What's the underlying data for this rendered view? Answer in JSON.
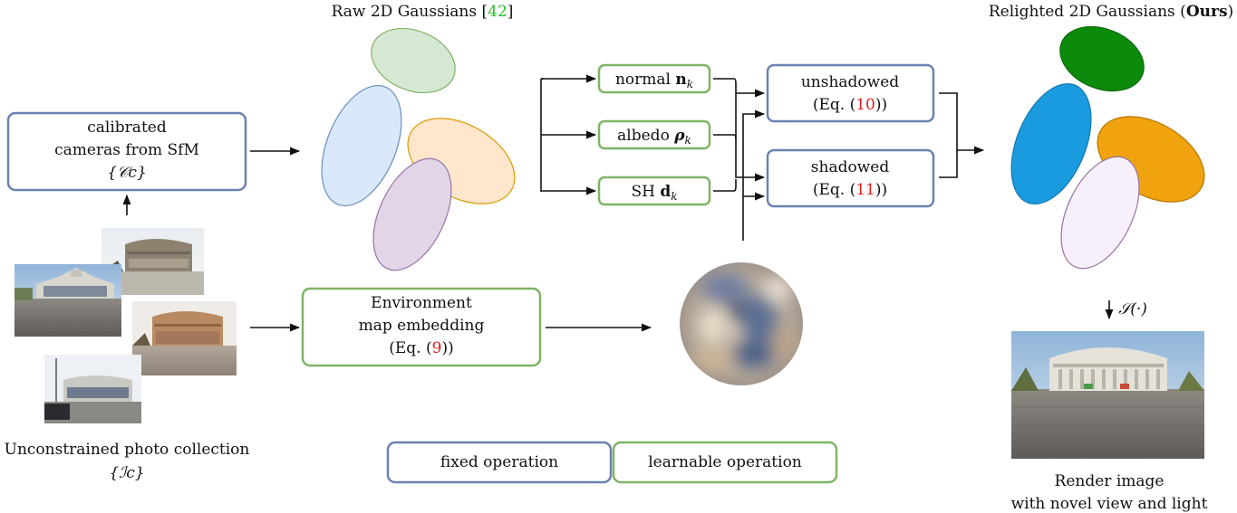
{
  "titles": {
    "raw": "Raw 2D Gaussians",
    "raw_ref": "42",
    "relit_prefix": "Relighted 2D Gaussians (",
    "relit_bold": "Ours",
    "relit_suffix": ")"
  },
  "boxes": {
    "cameras": {
      "line1": "calibrated",
      "line2": "cameras from SfM",
      "line3": "{𝒞c}"
    },
    "env": {
      "line1": "Environment",
      "line2": "map embedding",
      "line3_pre": "(Eq. (",
      "line3_ref": "9",
      "line3_post": "))"
    },
    "normal": {
      "label": "normal ",
      "sym": "n",
      "sub": "k"
    },
    "albedo": {
      "label": "albedo ",
      "sym": "ρ",
      "sub": "k"
    },
    "sh": {
      "label": "SH ",
      "sym": "d",
      "sub": "k"
    },
    "unshadowed": {
      "line1": "unshadowed",
      "line2_pre": "(Eq. (",
      "line2_ref": "10",
      "line2_post": "))"
    },
    "shadowed": {
      "line1": "shadowed",
      "line2_pre": "(Eq. (",
      "line2_ref": "11",
      "line2_post": "))"
    }
  },
  "legend": {
    "fixed": "fixed operation",
    "learnable": "learnable operation"
  },
  "captions": {
    "collection_line1": "Unconstrained photo collection",
    "collection_line2": "{ℐc}",
    "render_line1": "Render image",
    "render_line2": "with novel view and light",
    "render_op": "𝒮(·)"
  },
  "colors": {
    "fixed_border": "#6b82b0",
    "learnable_border": "#7fb466",
    "citation": "#22c322",
    "equation_ref": "#e01b1b",
    "raw_gaussians": [
      "#d5e8d4",
      "#dae8fc",
      "#ffe6cc",
      "#e1d5e7"
    ],
    "relit_gaussians": [
      "#0b8a0b",
      "#1a9be0",
      "#f0a20f",
      "#f7f0fb"
    ]
  }
}
